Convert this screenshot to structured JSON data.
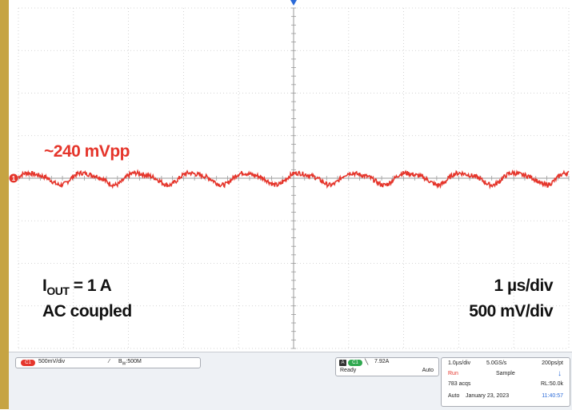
{
  "annotations": {
    "amplitude": "~240 mVpp",
    "current_main": "I",
    "current_sub": "OUT",
    "current_value": " = 1 A",
    "coupling": "AC coupled",
    "time_scale": "1 µs/div",
    "volt_scale": "500 mV/div"
  },
  "chart_data": {
    "type": "line",
    "title": "",
    "xlabel": "",
    "ylabel": "",
    "x_divisions": 10,
    "y_divisions": 8,
    "x_range_us": [
      0,
      10
    ],
    "y_range_mV": [
      -2000,
      2000
    ],
    "series": [
      {
        "name": "",
        "color": "#e5352b",
        "period_us": 0.98,
        "amplitude_mVpp": 240,
        "offset_mV": 0
      }
    ],
    "grid": true
  },
  "status": {
    "ch1_badge": "C1",
    "ch1_scale": "500mV/div",
    "ch1_bw_icon": "⁄",
    "ch1_bw": "B",
    "ch1_bw_sub": "W",
    "ch1_bw_value": ":500M",
    "trig_a": "A",
    "trig_src": "C1",
    "trig_edge": "╲",
    "trig_level": "7.92A",
    "trig_state": "Ready",
    "trig_mode": "Auto",
    "acq_tdiv": "1.0µs/div",
    "acq_rate": "5.0GS/s",
    "acq_pt": "200ps/pt",
    "acq_run": "Run",
    "acq_sample": "Sample",
    "acq_arrow": "↓",
    "acq_count": "783 acqs",
    "acq_rl": "RL:50.0k",
    "acq_auto": "Auto",
    "acq_date": "January 23, 2023",
    "acq_time": "11:40:57"
  },
  "colors": {
    "trace": "#e5352b",
    "frame": "#c6a443",
    "trigger": "#2a6ad8"
  }
}
